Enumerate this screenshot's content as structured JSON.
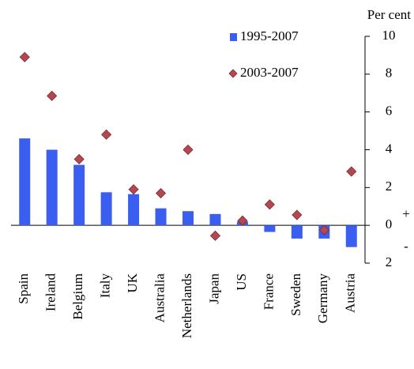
{
  "chart_data": {
    "type": "bar_scatter",
    "y_label": "Per cent",
    "annotations": [
      "+",
      "-"
    ],
    "categories": [
      "Spain",
      "Ireland",
      "Belgium",
      "Italy",
      "UK",
      "Australia",
      "Netherlands",
      "Japan",
      "US",
      "France",
      "Sweden",
      "Germany",
      "Austria"
    ],
    "series": [
      {
        "name": "1995-2007",
        "kind": "bar",
        "color": "#3a5ef0",
        "values": [
          4.6,
          4.0,
          3.2,
          1.75,
          1.65,
          0.9,
          0.75,
          0.6,
          0.2,
          -0.35,
          -0.7,
          -0.7,
          -1.15
        ]
      },
      {
        "name": "2003-2007",
        "kind": "diamond",
        "color": "#b5484f",
        "values": [
          8.9,
          6.85,
          3.5,
          4.8,
          1.9,
          1.7,
          4.0,
          -0.55,
          0.25,
          1.1,
          0.55,
          -0.25,
          2.85
        ]
      }
    ],
    "ylim": [
      -2,
      10
    ],
    "yticks": [
      {
        "value": -2,
        "label": "2"
      },
      0,
      2,
      4,
      6,
      8,
      10
    ]
  }
}
